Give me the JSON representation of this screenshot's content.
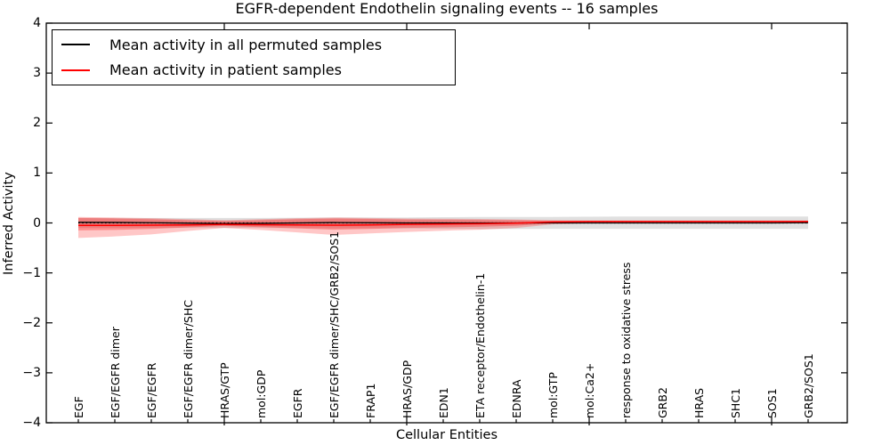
{
  "chart_data": {
    "type": "line",
    "title": "EGFR-dependent Endothelin signaling events -- 16 samples",
    "xlabel": "Cellular Entities",
    "ylabel": "Inferred Activity",
    "ylim": [
      -4,
      4
    ],
    "grid": false,
    "legend_position": "upper left",
    "legend": [
      {
        "label": "Mean activity in all permuted samples",
        "color": "#000000"
      },
      {
        "label": "Mean activity in patient samples",
        "color": "#ff0000"
      }
    ],
    "y_ticks": {
      "values": [
        4,
        3,
        2,
        1,
        0,
        -1,
        -2,
        -3,
        -4
      ],
      "labels": [
        "4",
        "3",
        "2",
        "1",
        "0",
        "−1",
        "−2",
        "−3",
        "−4"
      ]
    },
    "categories": [
      "EGF",
      "EGF/EGFR dimer",
      "EGF/EGFR",
      "EGF/EGFR dimer/SHC",
      "HRAS/GTP",
      "mol:GDP",
      "EGFR",
      "EGF/EGFR dimer/SHC/GRB2/SOS1",
      "FRAP1",
      "HRAS/GDP",
      "EDN1",
      "ETA receptor/Endothelin-1",
      "EDNRA",
      "mol:GTP",
      "mol:Ca2+",
      "response to oxidative stress",
      "GRB2",
      "HRAS",
      "SHC1",
      "SOS1",
      "GRB2/SOS1"
    ],
    "series": [
      {
        "name": "Mean activity in all permuted samples",
        "color": "#000000",
        "values": [
          0.012,
          0.01,
          0.005,
          -0.003,
          -0.012,
          -0.008,
          0.0,
          0.008,
          0.003,
          0.0,
          0.0,
          0.0,
          0.0,
          0.0,
          0.0,
          0.0,
          0.0,
          0.0,
          0.0,
          0.0,
          0.005
        ]
      },
      {
        "name": "Mean activity in patient samples",
        "color": "#ff0000",
        "values": [
          -0.05,
          -0.048,
          -0.045,
          -0.04,
          -0.03,
          -0.035,
          -0.04,
          -0.045,
          -0.04,
          -0.03,
          -0.022,
          -0.015,
          -0.005,
          0.02,
          0.028,
          0.03,
          0.03,
          0.03,
          0.03,
          0.03,
          0.03
        ]
      }
    ],
    "bands": [
      {
        "name": "permuted-range",
        "color": "#999999",
        "opacity": 0.3,
        "upper": [
          0.1,
          0.1,
          0.1,
          0.1,
          0.1,
          0.1,
          0.105,
          0.11,
          0.11,
          0.11,
          0.115,
          0.12,
          0.12,
          0.12,
          0.125,
          0.13,
          0.13,
          0.13,
          0.13,
          0.13,
          0.13
        ],
        "lower": [
          -0.1,
          -0.1,
          -0.1,
          -0.1,
          -0.1,
          -0.1,
          -0.105,
          -0.11,
          -0.11,
          -0.11,
          -0.115,
          -0.12,
          -0.12,
          -0.12,
          -0.12,
          -0.12,
          -0.12,
          -0.12,
          -0.12,
          -0.12,
          -0.12
        ]
      },
      {
        "name": "patient-outer",
        "color": "#ff0000",
        "opacity": 0.22,
        "upper": [
          0.12,
          0.11,
          0.095,
          0.075,
          0.055,
          0.075,
          0.095,
          0.11,
          0.1,
          0.09,
          0.085,
          0.08,
          0.07,
          0.055,
          0.05,
          0.05,
          0.05,
          0.05,
          0.05,
          0.05,
          0.05
        ],
        "lower": [
          -0.3,
          -0.27,
          -0.23,
          -0.16,
          -0.1,
          -0.14,
          -0.19,
          -0.24,
          -0.21,
          -0.18,
          -0.155,
          -0.135,
          -0.1,
          -0.03,
          -0.005,
          0.0,
          0.0,
          0.0,
          0.0,
          0.0,
          0.005
        ]
      },
      {
        "name": "patient-inner",
        "color": "#ff0000",
        "opacity": 0.28,
        "upper": [
          0.1,
          0.09,
          0.075,
          0.055,
          0.04,
          0.055,
          0.075,
          0.09,
          0.08,
          0.07,
          0.065,
          0.06,
          0.055,
          0.045,
          0.045,
          0.045,
          0.045,
          0.045,
          0.045,
          0.045,
          0.045
        ],
        "lower": [
          -0.15,
          -0.14,
          -0.12,
          -0.09,
          -0.06,
          -0.085,
          -0.11,
          -0.135,
          -0.12,
          -0.1,
          -0.09,
          -0.075,
          -0.055,
          -0.01,
          0.005,
          0.01,
          0.01,
          0.01,
          0.01,
          0.01,
          0.01
        ]
      }
    ],
    "zero_line": {
      "style": "dotted",
      "color": "#000000",
      "y": 0
    },
    "top_tick_indices": [
      4,
      9,
      14,
      19
    ]
  }
}
